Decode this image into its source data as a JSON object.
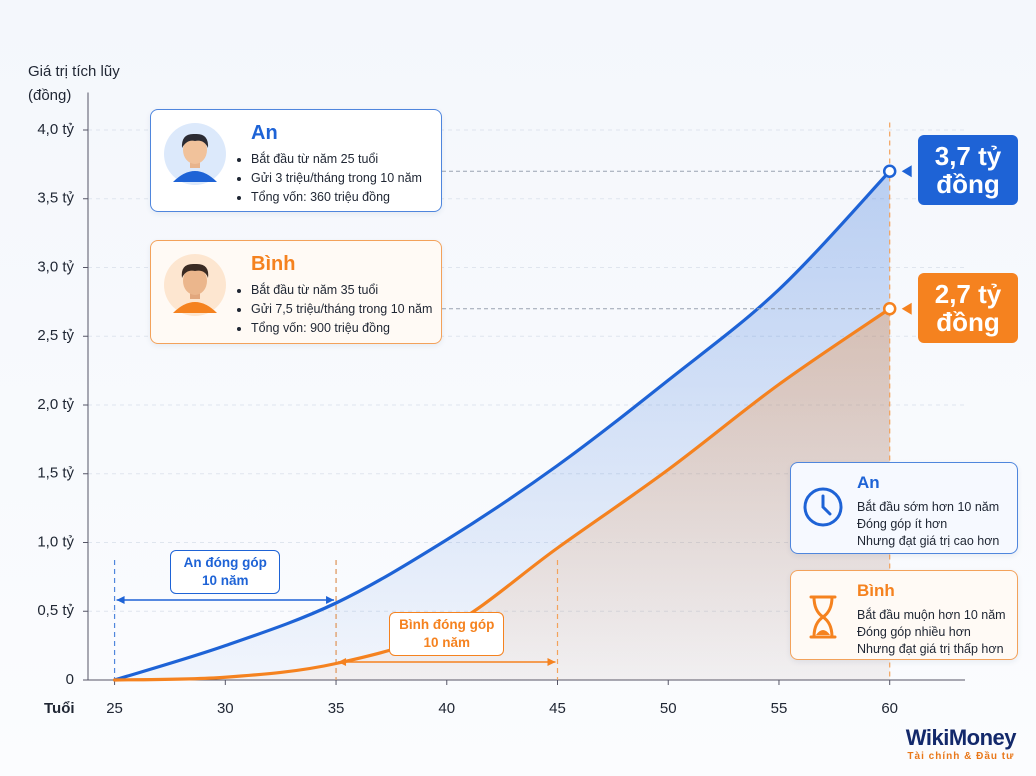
{
  "chart_data": {
    "type": "line",
    "y_label": [
      "Giá trị tích lũy",
      "(đồng)"
    ],
    "x_label": "Tuổi",
    "x": [
      25,
      30,
      35,
      40,
      45,
      50,
      55,
      60
    ],
    "xlim": [
      23.8,
      63.4
    ],
    "xticks": [
      25,
      30,
      35,
      40,
      45,
      50,
      55,
      60
    ],
    "ylim": [
      0,
      4.2
    ],
    "yticks": [
      0,
      {
        "value": 0.5,
        "label": "0,5 tỷ"
      },
      {
        "value": 1.0,
        "label": "1,0 tỷ"
      },
      {
        "value": 1.5,
        "label": "1,5 tỷ"
      },
      {
        "value": 2.0,
        "label": "2,0 tỷ"
      },
      {
        "value": 2.5,
        "label": "2,5 tỷ"
      },
      {
        "value": 3.0,
        "label": "3,0 tỷ"
      },
      {
        "value": 3.5,
        "label": "3,5 tỷ"
      },
      {
        "value": 4.0,
        "label": "4,0 tỷ"
      }
    ],
    "grid": true,
    "series": [
      {
        "name": "An",
        "color": "#1e63d6",
        "values": [
          0,
          0.25,
          0.56,
          1.02,
          1.56,
          2.18,
          2.84,
          3.7
        ],
        "value_labels": [
          null,
          null,
          null,
          null,
          null,
          null,
          null,
          "3,7 tỷ đồng"
        ]
      },
      {
        "name": "Bình",
        "color": "#f5821f",
        "values": [
          0,
          0.02,
          0.12,
          0.38,
          0.96,
          1.53,
          2.15,
          2.7
        ],
        "value_labels": [
          null,
          null,
          null,
          null,
          null,
          null,
          null,
          "2,7 tỷ đồng"
        ]
      }
    ],
    "spans": [
      {
        "label": [
          "An đóng góp",
          "10 năm"
        ],
        "x": [
          25,
          35
        ]
      },
      {
        "label": [
          "Bình đóng góp",
          "10 năm"
        ],
        "x": [
          35,
          45
        ]
      }
    ]
  },
  "profiles": [
    {
      "bullets": [
        "Bắt đầu từ năm 25 tuổi",
        "Gửi 3 triệu/tháng trong 10 năm",
        "Tổng vốn: 360 triệu đồng"
      ]
    },
    {
      "bullets": [
        "Bắt đầu từ năm 35 tuổi",
        "Gửi 7,5 triệu/tháng trong 10 năm",
        "Tổng vốn: 900 triệu đồng"
      ]
    }
  ],
  "comparisons": [
    {
      "lines": [
        "Bắt đầu sớm hơn 10 năm",
        "Đóng góp ít hơn",
        "Nhưng đạt giá trị cao hơn"
      ]
    },
    {
      "lines": [
        "Bắt đầu muộn hơn 10 năm",
        "Đóng góp nhiều hơn",
        "Nhưng đạt giá trị thấp hơn"
      ]
    }
  ],
  "brand": {
    "name": "WikiMoney",
    "tagline": "Tài chính & Đầu tư"
  }
}
